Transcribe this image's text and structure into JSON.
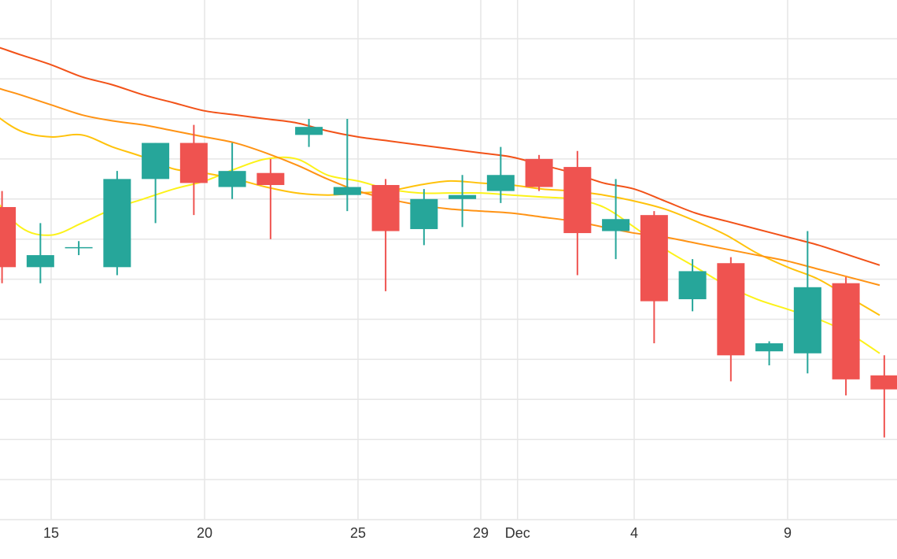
{
  "chart_data": {
    "type": "candlestick",
    "title": "",
    "xlabel": "",
    "ylabel": "",
    "grid": true,
    "ylim": [
      0,
      13
    ],
    "x_ticks": [
      {
        "day": 15,
        "label": "15"
      },
      {
        "day": 20,
        "label": "20"
      },
      {
        "day": 25,
        "label": "25"
      },
      {
        "day": 29,
        "label": "29"
      },
      {
        "day": 30.2,
        "label": "Dec"
      },
      {
        "day": 34,
        "label": "4"
      },
      {
        "day": 39,
        "label": "9"
      }
    ],
    "candles": [
      {
        "day": 13.4,
        "open": 7.8,
        "high": 8.2,
        "low": 5.9,
        "close": 6.3
      },
      {
        "day": 14.65,
        "open": 6.3,
        "high": 7.4,
        "low": 5.9,
        "close": 6.6
      },
      {
        "day": 15.9,
        "open": 6.8,
        "high": 6.95,
        "low": 6.6,
        "close": 6.8
      },
      {
        "day": 17.15,
        "open": 6.3,
        "high": 8.7,
        "low": 6.1,
        "close": 8.5
      },
      {
        "day": 18.4,
        "open": 8.5,
        "high": 9.4,
        "low": 7.4,
        "close": 9.4
      },
      {
        "day": 19.65,
        "open": 9.4,
        "high": 9.85,
        "low": 7.6,
        "close": 8.4
      },
      {
        "day": 20.9,
        "open": 8.3,
        "high": 9.4,
        "low": 8.0,
        "close": 8.7
      },
      {
        "day": 22.15,
        "open": 8.65,
        "high": 9.0,
        "low": 7.0,
        "close": 8.35
      },
      {
        "day": 23.4,
        "open": 9.6,
        "high": 10.0,
        "low": 9.3,
        "close": 9.8
      },
      {
        "day": 24.65,
        "open": 8.1,
        "high": 10.0,
        "low": 7.7,
        "close": 8.3
      },
      {
        "day": 25.9,
        "open": 8.35,
        "high": 8.5,
        "low": 5.7,
        "close": 7.2
      },
      {
        "day": 27.15,
        "open": 7.25,
        "high": 8.25,
        "low": 6.85,
        "close": 8.0
      },
      {
        "day": 28.4,
        "open": 8.0,
        "high": 8.6,
        "low": 7.3,
        "close": 8.1
      },
      {
        "day": 29.65,
        "open": 8.2,
        "high": 9.3,
        "low": 7.9,
        "close": 8.6
      },
      {
        "day": 30.9,
        "open": 9.0,
        "high": 9.1,
        "low": 8.2,
        "close": 8.3
      },
      {
        "day": 32.15,
        "open": 8.8,
        "high": 9.2,
        "low": 6.1,
        "close": 7.15
      },
      {
        "day": 33.4,
        "open": 7.2,
        "high": 8.5,
        "low": 6.5,
        "close": 7.5
      },
      {
        "day": 34.65,
        "open": 7.6,
        "high": 7.7,
        "low": 4.4,
        "close": 5.45
      },
      {
        "day": 35.9,
        "open": 5.5,
        "high": 6.5,
        "low": 5.2,
        "close": 6.2
      },
      {
        "day": 37.15,
        "open": 6.4,
        "high": 6.55,
        "low": 3.45,
        "close": 4.1
      },
      {
        "day": 38.4,
        "open": 4.2,
        "high": 4.45,
        "low": 3.85,
        "close": 4.4
      },
      {
        "day": 39.65,
        "open": 4.15,
        "high": 7.2,
        "low": 3.65,
        "close": 5.8
      },
      {
        "day": 40.9,
        "open": 5.9,
        "high": 6.05,
        "low": 3.1,
        "close": 3.5
      },
      {
        "day": 42.15,
        "open": 3.6,
        "high": 4.1,
        "low": 2.05,
        "close": 3.25
      }
    ],
    "moving_averages": [
      {
        "color": "#fcf219",
        "points": [
          [
            12.0,
            9.6
          ],
          [
            13.0,
            8.2
          ],
          [
            14.0,
            7.3
          ],
          [
            15.0,
            7.1
          ],
          [
            16.0,
            7.4
          ],
          [
            17.0,
            7.75
          ],
          [
            18.0,
            8.0
          ],
          [
            19.0,
            8.25
          ],
          [
            20.0,
            8.45
          ],
          [
            21.0,
            8.75
          ],
          [
            22.0,
            9.0
          ],
          [
            23.0,
            9.0
          ],
          [
            24.0,
            8.6
          ],
          [
            25.0,
            8.45
          ],
          [
            26.0,
            8.25
          ],
          [
            27.0,
            8.15
          ],
          [
            28.0,
            8.15
          ],
          [
            29.0,
            8.15
          ],
          [
            30.0,
            8.1
          ],
          [
            31.0,
            8.05
          ],
          [
            32.0,
            8.0
          ],
          [
            33.0,
            7.8
          ],
          [
            34.0,
            7.3
          ],
          [
            35.0,
            6.75
          ],
          [
            36.0,
            6.3
          ],
          [
            37.0,
            5.85
          ],
          [
            38.0,
            5.5
          ],
          [
            39.0,
            5.25
          ],
          [
            40.0,
            5.0
          ],
          [
            41.0,
            4.65
          ],
          [
            42.0,
            4.15
          ]
        ]
      },
      {
        "color": "#ffc20b",
        "points": [
          [
            12.0,
            10.8
          ],
          [
            13.0,
            10.2
          ],
          [
            14.0,
            9.7
          ],
          [
            15.0,
            9.55
          ],
          [
            16.0,
            9.6
          ],
          [
            17.0,
            9.3
          ],
          [
            18.0,
            9.05
          ],
          [
            19.0,
            8.75
          ],
          [
            20.0,
            8.65
          ],
          [
            21.0,
            8.5
          ],
          [
            22.0,
            8.3
          ],
          [
            23.0,
            8.15
          ],
          [
            24.0,
            8.1
          ],
          [
            25.0,
            8.15
          ],
          [
            26.0,
            8.2
          ],
          [
            27.0,
            8.35
          ],
          [
            28.0,
            8.45
          ],
          [
            29.0,
            8.4
          ],
          [
            30.0,
            8.35
          ],
          [
            31.0,
            8.25
          ],
          [
            32.0,
            8.2
          ],
          [
            33.0,
            8.1
          ],
          [
            34.0,
            7.95
          ],
          [
            35.0,
            7.75
          ],
          [
            36.0,
            7.45
          ],
          [
            37.0,
            7.1
          ],
          [
            38.0,
            6.65
          ],
          [
            39.0,
            6.3
          ],
          [
            40.0,
            6.0
          ],
          [
            41.0,
            5.55
          ],
          [
            42.0,
            5.1
          ]
        ]
      },
      {
        "color": "#ff9314",
        "points": [
          [
            12.0,
            11.3
          ],
          [
            13.0,
            10.85
          ],
          [
            14.0,
            10.6
          ],
          [
            15.0,
            10.35
          ],
          [
            16.0,
            10.1
          ],
          [
            17.0,
            9.95
          ],
          [
            18.0,
            9.85
          ],
          [
            19.0,
            9.7
          ],
          [
            20.0,
            9.55
          ],
          [
            21.0,
            9.4
          ],
          [
            22.0,
            9.15
          ],
          [
            23.0,
            8.85
          ],
          [
            24.0,
            8.5
          ],
          [
            25.0,
            8.2
          ],
          [
            26.0,
            8.0
          ],
          [
            27.0,
            7.85
          ],
          [
            28.0,
            7.75
          ],
          [
            29.0,
            7.7
          ],
          [
            30.0,
            7.65
          ],
          [
            31.0,
            7.55
          ],
          [
            32.0,
            7.45
          ],
          [
            33.0,
            7.3
          ],
          [
            34.0,
            7.15
          ],
          [
            35.0,
            7.05
          ],
          [
            36.0,
            6.9
          ],
          [
            37.0,
            6.75
          ],
          [
            38.0,
            6.6
          ],
          [
            39.0,
            6.45
          ],
          [
            40.0,
            6.25
          ],
          [
            41.0,
            6.05
          ],
          [
            42.0,
            5.85
          ]
        ]
      },
      {
        "color": "#f25218",
        "points": [
          [
            12.0,
            12.0
          ],
          [
            13.0,
            11.85
          ],
          [
            14.0,
            11.6
          ],
          [
            15.0,
            11.35
          ],
          [
            16.0,
            11.05
          ],
          [
            17.0,
            10.85
          ],
          [
            18.0,
            10.6
          ],
          [
            19.0,
            10.4
          ],
          [
            20.0,
            10.2
          ],
          [
            21.0,
            10.1
          ],
          [
            22.0,
            10.0
          ],
          [
            23.0,
            9.9
          ],
          [
            24.0,
            9.7
          ],
          [
            25.0,
            9.55
          ],
          [
            26.0,
            9.45
          ],
          [
            27.0,
            9.35
          ],
          [
            28.0,
            9.25
          ],
          [
            29.0,
            9.15
          ],
          [
            30.0,
            9.05
          ],
          [
            31.0,
            8.85
          ],
          [
            32.0,
            8.65
          ],
          [
            33.0,
            8.4
          ],
          [
            34.0,
            8.25
          ],
          [
            35.0,
            7.95
          ],
          [
            36.0,
            7.65
          ],
          [
            37.0,
            7.45
          ],
          [
            38.0,
            7.25
          ],
          [
            39.0,
            7.05
          ],
          [
            40.0,
            6.85
          ],
          [
            41.0,
            6.6
          ],
          [
            42.0,
            6.35
          ]
        ]
      }
    ],
    "colors": {
      "up": "#26a69a",
      "down": "#ef5350",
      "grid": "#e6e6e6",
      "text": "#333333"
    }
  }
}
